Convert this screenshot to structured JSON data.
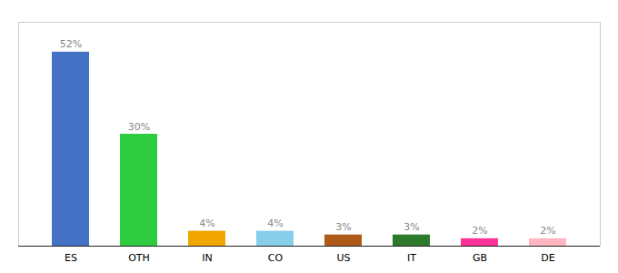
{
  "chart_data": {
    "type": "bar",
    "categories": [
      "ES",
      "OTH",
      "IN",
      "CO",
      "US",
      "IT",
      "GB",
      "DE"
    ],
    "values": [
      52,
      30,
      4,
      4,
      3,
      3,
      2,
      2
    ],
    "colors": [
      "#4472c4",
      "#2ecc40",
      "#f0a500",
      "#87ceeb",
      "#b05a1a",
      "#2d7a2d",
      "#ff3399",
      "#ffb6c1"
    ],
    "ylim": [
      0,
      60
    ],
    "data_labels": true,
    "value_labels": [
      "52%",
      "30%",
      "4%",
      "4%",
      "3%",
      "3%",
      "2%",
      "2%"
    ],
    "tick_labels": "x",
    "grid": false
  }
}
